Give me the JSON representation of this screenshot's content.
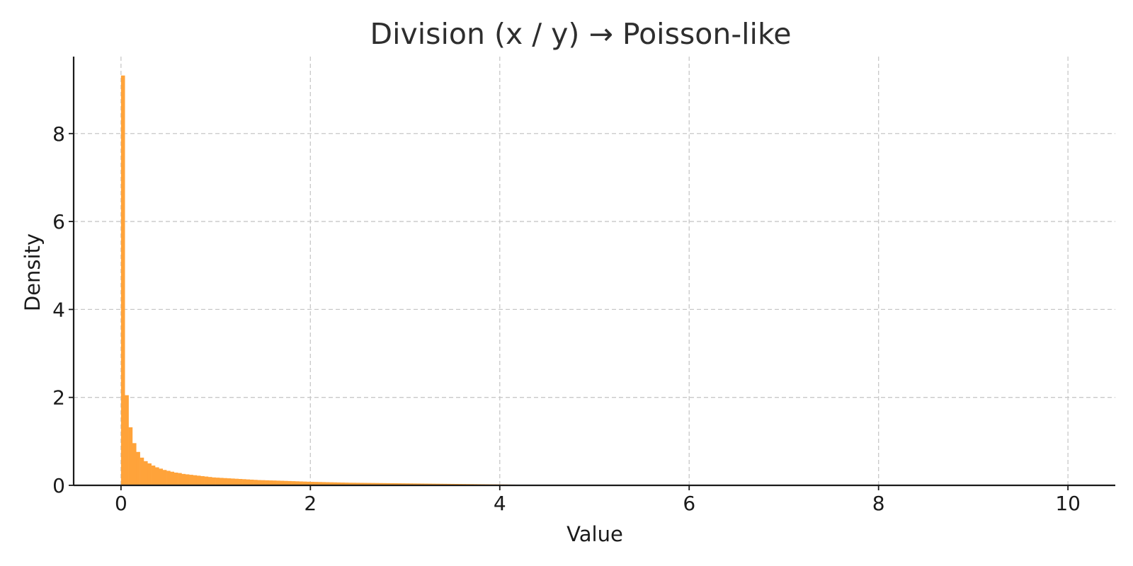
{
  "chart_data": {
    "type": "bar",
    "subtype": "histogram",
    "title": "Division (x / y) → Poisson-like",
    "xlabel": "Value",
    "ylabel": "Density",
    "xlim": [
      -0.5,
      10.5
    ],
    "ylim": [
      0,
      9.75
    ],
    "xticks": [
      0,
      2,
      4,
      6,
      8,
      10
    ],
    "yticks": [
      0,
      2,
      4,
      6,
      8
    ],
    "grid": true,
    "color": "#ffa33a",
    "bin_width": 0.04,
    "bin_start": 0,
    "values": [
      9.32,
      2.05,
      1.32,
      0.96,
      0.76,
      0.63,
      0.55,
      0.5,
      0.45,
      0.41,
      0.38,
      0.35,
      0.33,
      0.31,
      0.29,
      0.28,
      0.26,
      0.25,
      0.24,
      0.23,
      0.22,
      0.21,
      0.2,
      0.19,
      0.18,
      0.175,
      0.17,
      0.165,
      0.16,
      0.155,
      0.15,
      0.145,
      0.14,
      0.135,
      0.13,
      0.125,
      0.12,
      0.118,
      0.115,
      0.112,
      0.11,
      0.107,
      0.104,
      0.101,
      0.098,
      0.095,
      0.092,
      0.089,
      0.086,
      0.083,
      0.08,
      0.078,
      0.076,
      0.074,
      0.072,
      0.07,
      0.068,
      0.066,
      0.064,
      0.062,
      0.06,
      0.059,
      0.058,
      0.057,
      0.056,
      0.055,
      0.054,
      0.053,
      0.052,
      0.051,
      0.05,
      0.049,
      0.048,
      0.047,
      0.046,
      0.045,
      0.044,
      0.043,
      0.042,
      0.041,
      0.04,
      0.039,
      0.038,
      0.037,
      0.036,
      0.035,
      0.034,
      0.033,
      0.032,
      0.031,
      0.03,
      0.029,
      0.028,
      0.027,
      0.026,
      0.025,
      0.024,
      0.023,
      0.022,
      0.021,
      0.02,
      0.019,
      0.018,
      0.017,
      0.016,
      0.015,
      0.014,
      0.013,
      0.012,
      0.011,
      0.01,
      0.009,
      0.008,
      0.007,
      0.006,
      0.005,
      0.004,
      0.003,
      0.002,
      0.001
    ]
  }
}
